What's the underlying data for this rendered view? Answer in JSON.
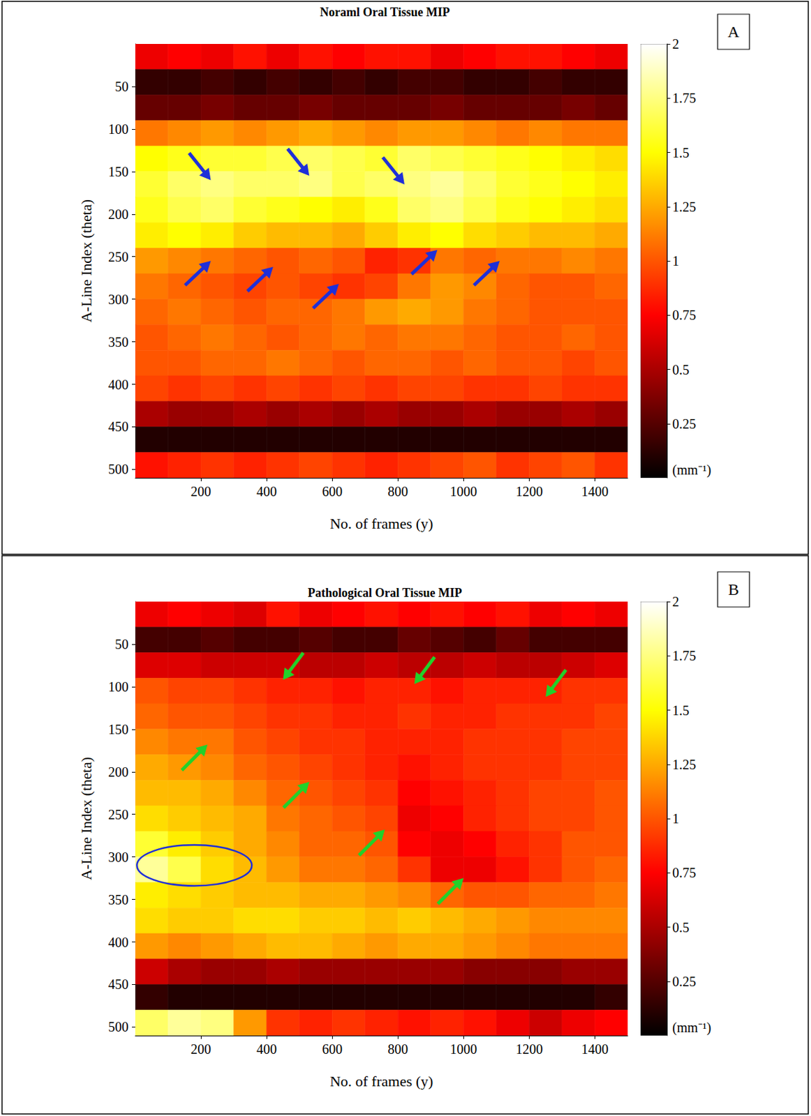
{
  "chart_data": [
    {
      "type": "heatmap",
      "title": "Noraml Oral Tissue MIP",
      "panel": "A",
      "x_label": "No. of frames (y)",
      "y_label": "A-Line Index (theta)",
      "xlim": [
        0,
        1500
      ],
      "xticks": [
        200,
        400,
        600,
        800,
        1000,
        1200,
        1400
      ],
      "ylim": [
        0,
        510
      ],
      "yticks": [
        50,
        100,
        150,
        200,
        250,
        300,
        350,
        400,
        450,
        500
      ],
      "cells": {
        "x_edges": [
          0,
          100,
          200,
          300,
          400,
          500,
          600,
          700,
          800,
          900,
          1000,
          1100,
          1200,
          1300,
          1400,
          1500
        ],
        "y_edges": [
          0,
          30,
          60,
          90,
          120,
          150,
          180,
          210,
          240,
          270,
          300,
          330,
          360,
          390,
          420,
          450,
          480,
          510
        ],
        "values": [
          [
            0.7,
            0.75,
            0.7,
            0.8,
            0.7,
            0.8,
            0.75,
            0.8,
            0.8,
            0.7,
            0.75,
            0.8,
            0.8,
            0.75,
            0.7
          ],
          [
            0.15,
            0.15,
            0.2,
            0.15,
            0.2,
            0.15,
            0.2,
            0.15,
            0.2,
            0.2,
            0.15,
            0.15,
            0.2,
            0.15,
            0.15
          ],
          [
            0.3,
            0.3,
            0.35,
            0.3,
            0.3,
            0.35,
            0.3,
            0.3,
            0.3,
            0.35,
            0.3,
            0.3,
            0.3,
            0.35,
            0.3
          ],
          [
            1.1,
            1.15,
            1.2,
            1.15,
            1.2,
            1.25,
            1.2,
            1.15,
            1.2,
            1.2,
            1.15,
            1.1,
            1.15,
            1.1,
            1.1
          ],
          [
            1.5,
            1.55,
            1.6,
            1.6,
            1.65,
            1.7,
            1.65,
            1.6,
            1.7,
            1.65,
            1.6,
            1.55,
            1.5,
            1.45,
            1.4
          ],
          [
            1.6,
            1.7,
            1.75,
            1.7,
            1.7,
            1.75,
            1.65,
            1.7,
            1.75,
            1.8,
            1.7,
            1.6,
            1.55,
            1.5,
            1.45
          ],
          [
            1.55,
            1.65,
            1.7,
            1.6,
            1.55,
            1.5,
            1.45,
            1.55,
            1.7,
            1.75,
            1.65,
            1.55,
            1.5,
            1.45,
            1.4
          ],
          [
            1.45,
            1.5,
            1.45,
            1.35,
            1.3,
            1.3,
            1.25,
            1.35,
            1.45,
            1.5,
            1.4,
            1.35,
            1.3,
            1.3,
            1.25
          ],
          [
            1.2,
            1.15,
            1.1,
            1.05,
            1.0,
            1.05,
            1.0,
            0.85,
            0.9,
            1.1,
            1.05,
            1.1,
            1.1,
            1.15,
            1.1
          ],
          [
            1.1,
            1.05,
            1.0,
            0.95,
            1.0,
            0.95,
            0.9,
            0.95,
            1.1,
            1.2,
            1.15,
            1.05,
            1.0,
            1.0,
            1.05
          ],
          [
            1.05,
            1.1,
            1.05,
            1.0,
            1.05,
            1.05,
            1.1,
            1.2,
            1.25,
            1.2,
            1.1,
            1.05,
            1.0,
            1.0,
            1.0
          ],
          [
            1.0,
            1.05,
            1.1,
            1.05,
            1.0,
            1.05,
            1.1,
            1.05,
            1.1,
            1.1,
            1.05,
            1.0,
            1.0,
            1.05,
            1.0
          ],
          [
            1.0,
            1.0,
            1.05,
            1.05,
            1.1,
            1.05,
            1.0,
            1.05,
            1.05,
            1.0,
            1.05,
            1.0,
            1.0,
            0.95,
            1.0
          ],
          [
            0.95,
            0.9,
            0.95,
            0.9,
            0.95,
            0.9,
            0.95,
            0.9,
            0.95,
            0.95,
            0.9,
            0.9,
            0.95,
            0.9,
            0.9
          ],
          [
            0.5,
            0.45,
            0.45,
            0.5,
            0.45,
            0.5,
            0.45,
            0.5,
            0.45,
            0.45,
            0.5,
            0.45,
            0.45,
            0.5,
            0.45
          ],
          [
            0.1,
            0.1,
            0.1,
            0.1,
            0.1,
            0.1,
            0.1,
            0.1,
            0.1,
            0.1,
            0.1,
            0.1,
            0.1,
            0.1,
            0.1
          ],
          [
            0.8,
            0.85,
            0.9,
            0.85,
            0.9,
            0.95,
            0.9,
            0.85,
            0.9,
            0.95,
            1.0,
            0.9,
            0.95,
            1.0,
            0.9
          ]
        ]
      },
      "colorbar": {
        "range": [
          0,
          2
        ],
        "ticks": [
          0.25,
          0.5,
          0.75,
          1,
          1.25,
          1.5,
          1.75,
          2
        ],
        "label": "(mm⁻¹)"
      }
    },
    {
      "type": "heatmap",
      "title": "Pathological Oral Tissue MIP",
      "panel": "B",
      "x_label": "No. of frames (y)",
      "y_label": "A-Line Index (theta)",
      "xlim": [
        0,
        1500
      ],
      "xticks": [
        200,
        400,
        600,
        800,
        1000,
        1200,
        1400
      ],
      "ylim": [
        0,
        510
      ],
      "yticks": [
        50,
        100,
        150,
        200,
        250,
        300,
        350,
        400,
        450,
        500
      ],
      "cells": {
        "x_edges": [
          0,
          100,
          200,
          300,
          400,
          500,
          600,
          700,
          800,
          900,
          1000,
          1100,
          1200,
          1300,
          1400,
          1500
        ],
        "y_edges": [
          0,
          30,
          60,
          90,
          120,
          150,
          180,
          210,
          240,
          270,
          300,
          330,
          360,
          390,
          420,
          450,
          480,
          510
        ],
        "values": [
          [
            0.7,
            0.75,
            0.7,
            0.65,
            0.8,
            0.7,
            0.75,
            0.8,
            0.75,
            0.8,
            0.75,
            0.8,
            0.7,
            0.75,
            0.7
          ],
          [
            0.2,
            0.2,
            0.25,
            0.2,
            0.2,
            0.25,
            0.2,
            0.2,
            0.3,
            0.25,
            0.2,
            0.3,
            0.2,
            0.2,
            0.2
          ],
          [
            0.65,
            0.65,
            0.6,
            0.6,
            0.6,
            0.55,
            0.55,
            0.6,
            0.55,
            0.55,
            0.6,
            0.55,
            0.55,
            0.6,
            0.65
          ],
          [
            1.0,
            0.95,
            0.95,
            0.9,
            0.85,
            0.85,
            0.8,
            0.85,
            0.85,
            0.8,
            0.85,
            0.85,
            0.85,
            0.9,
            0.9
          ],
          [
            1.05,
            1.0,
            1.0,
            0.95,
            0.9,
            0.9,
            0.85,
            0.85,
            0.9,
            0.85,
            0.85,
            0.9,
            0.9,
            0.9,
            0.95
          ],
          [
            1.15,
            1.1,
            1.1,
            1.0,
            0.95,
            0.9,
            0.9,
            0.85,
            0.85,
            0.85,
            0.9,
            0.9,
            0.9,
            0.95,
            0.95
          ],
          [
            1.25,
            1.2,
            1.15,
            1.05,
            1.0,
            0.95,
            0.9,
            0.85,
            0.8,
            0.85,
            0.9,
            0.9,
            0.9,
            0.95,
            0.95
          ],
          [
            1.3,
            1.3,
            1.25,
            1.15,
            1.05,
            1.0,
            0.95,
            0.9,
            0.75,
            0.8,
            0.85,
            0.9,
            0.95,
            0.95,
            1.0
          ],
          [
            1.4,
            1.35,
            1.3,
            1.25,
            1.1,
            1.05,
            1.0,
            0.95,
            0.7,
            0.75,
            0.85,
            0.9,
            0.95,
            0.95,
            1.0
          ],
          [
            1.6,
            1.45,
            1.35,
            1.25,
            1.15,
            1.05,
            1.05,
            1.0,
            0.75,
            0.7,
            0.75,
            0.85,
            0.9,
            1.0,
            1.0
          ],
          [
            1.8,
            1.65,
            1.4,
            1.3,
            1.2,
            1.1,
            1.1,
            1.05,
            0.9,
            0.7,
            0.7,
            0.8,
            0.9,
            1.0,
            1.05
          ],
          [
            1.45,
            1.4,
            1.35,
            1.3,
            1.3,
            1.25,
            1.25,
            1.2,
            1.15,
            1.05,
            1.0,
            1.0,
            1.05,
            1.05,
            1.1
          ],
          [
            1.4,
            1.35,
            1.35,
            1.4,
            1.4,
            1.35,
            1.35,
            1.3,
            1.35,
            1.3,
            1.25,
            1.2,
            1.15,
            1.15,
            1.15
          ],
          [
            1.2,
            1.15,
            1.2,
            1.25,
            1.3,
            1.3,
            1.25,
            1.2,
            1.25,
            1.25,
            1.2,
            1.15,
            1.1,
            1.1,
            1.1
          ],
          [
            0.6,
            0.5,
            0.45,
            0.45,
            0.5,
            0.45,
            0.45,
            0.45,
            0.45,
            0.45,
            0.4,
            0.4,
            0.4,
            0.45,
            0.45
          ],
          [
            0.15,
            0.1,
            0.1,
            0.1,
            0.1,
            0.1,
            0.1,
            0.1,
            0.1,
            0.1,
            0.1,
            0.1,
            0.1,
            0.1,
            0.15
          ],
          [
            1.7,
            1.8,
            1.75,
            1.2,
            0.9,
            0.85,
            0.9,
            0.85,
            0.8,
            0.85,
            0.8,
            0.7,
            0.6,
            0.7,
            0.75
          ]
        ]
      },
      "colorbar": {
        "range": [
          0,
          2
        ],
        "ticks": [
          0.25,
          0.5,
          0.75,
          1,
          1.25,
          1.5,
          1.75,
          2
        ],
        "label": "(mm⁻¹)"
      }
    }
  ]
}
